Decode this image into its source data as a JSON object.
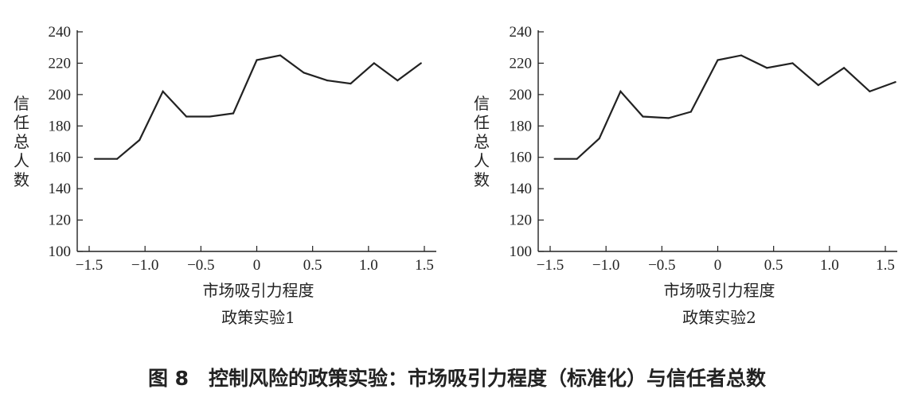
{
  "chart_data": [
    {
      "type": "line",
      "subtitle": "政策实验1",
      "xlabel": "市场吸引力程度",
      "ylabel": "信任总人数",
      "xlim": [
        -1.5,
        1.5
      ],
      "ylim": [
        100,
        240
      ],
      "xticks": [
        -1.5,
        -1.0,
        -0.5,
        0,
        0.5,
        1.0,
        1.5
      ],
      "xtick_labels": [
        "−1.5",
        "−1.0",
        "−0.5",
        "0",
        "0.5",
        "1.0",
        "1.5"
      ],
      "yticks": [
        100,
        120,
        140,
        160,
        180,
        200,
        220,
        240
      ],
      "ytick_labels": [
        "100",
        "120",
        "140",
        "160",
        "180",
        "200",
        "220",
        "240"
      ],
      "grid": false,
      "x": [
        -1.45,
        -1.25,
        -1.05,
        -0.84,
        -0.63,
        -0.42,
        -0.21,
        0.0,
        0.21,
        0.42,
        0.63,
        0.84,
        1.05,
        1.26,
        1.47
      ],
      "y": [
        159,
        159,
        171,
        202,
        186,
        186,
        188,
        222,
        225,
        214,
        209,
        207,
        220,
        209,
        220
      ]
    },
    {
      "type": "line",
      "subtitle": "政策实验2",
      "xlabel": "市场吸引力程度",
      "ylabel": "信任总人数",
      "xlim": [
        -1.5,
        1.5
      ],
      "ylim": [
        100,
        240
      ],
      "xticks": [
        -1.5,
        -1.0,
        -0.5,
        0,
        0.5,
        1.0,
        1.5
      ],
      "xtick_labels": [
        "−1.5",
        "−1.0",
        "−0.5",
        "0",
        "0.5",
        "1.0",
        "1.5"
      ],
      "yticks": [
        100,
        120,
        140,
        160,
        180,
        200,
        220,
        240
      ],
      "ytick_labels": [
        "100",
        "120",
        "140",
        "160",
        "180",
        "200",
        "220",
        "240"
      ],
      "grid": false,
      "x": [
        -1.46,
        -1.26,
        -1.06,
        -0.87,
        -0.67,
        -0.44,
        -0.24,
        0.0,
        0.21,
        0.44,
        0.67,
        0.9,
        1.13,
        1.36,
        1.59
      ],
      "y": [
        159,
        159,
        172,
        202,
        186,
        185,
        189,
        222,
        225,
        217,
        220,
        206,
        217,
        202,
        208
      ]
    }
  ],
  "caption": "图 8　控制风险的政策实验：市场吸引力程度（标准化）与信任者总数"
}
